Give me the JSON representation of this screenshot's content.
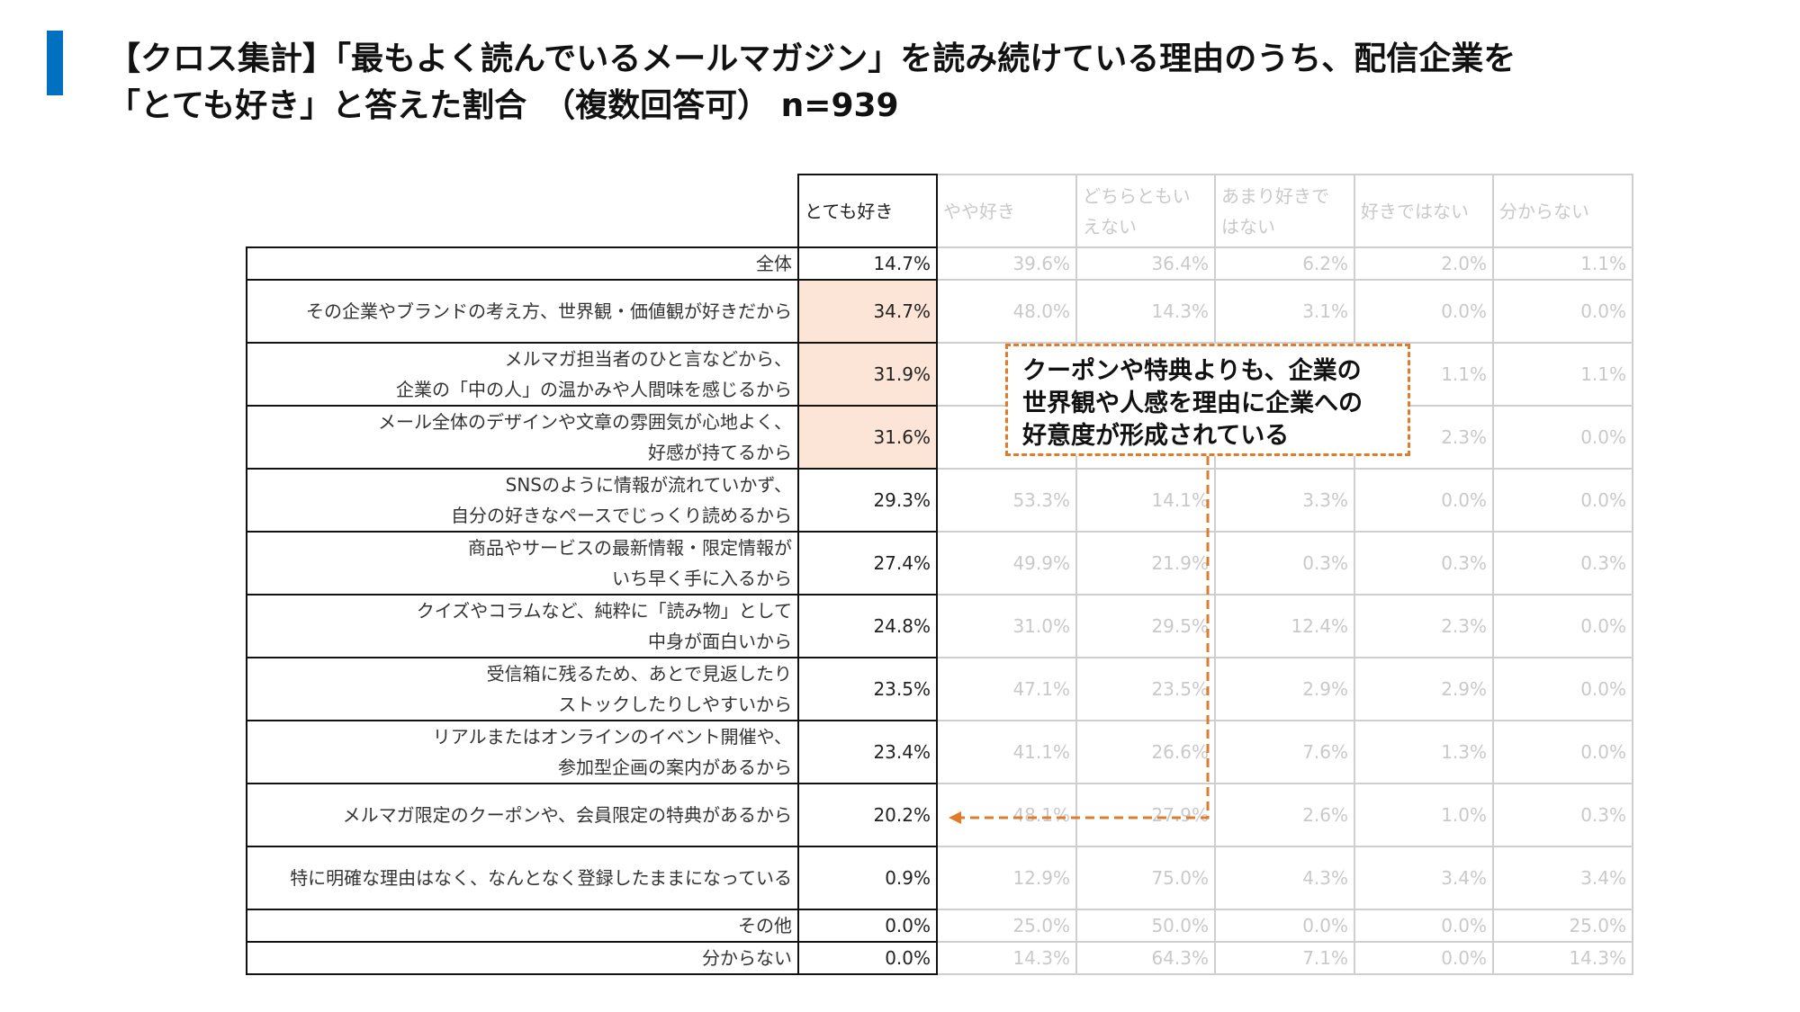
{
  "title": {
    "line1": "【クロス集計】「最もよく読んでいるメールマガジン」を読み続けている理由のうち、配信企業を",
    "line2": "「とても好き」と答えた割合　（複数回答可） n=939"
  },
  "annotation": {
    "line1": "クーポンや特典よりも、企業の",
    "line2": "世界観や人感を理由に企業への",
    "line3": "好意度が形成されている"
  },
  "colors": {
    "accent": "#0070c0",
    "highlight": "#fce4d6",
    "annotation": "#e07b2a"
  },
  "chart_data": {
    "type": "table",
    "columns": [
      [
        "とても好き"
      ],
      [
        "やや好き"
      ],
      [
        "どちらともい",
        "えない"
      ],
      [
        "あまり好きで",
        "はない"
      ],
      [
        "好きではない"
      ],
      [
        "分からない"
      ]
    ],
    "rows": [
      {
        "label": [
          "全体"
        ],
        "values": [
          "14.7%",
          "39.6%",
          "36.4%",
          "6.2%",
          "2.0%",
          "1.1%"
        ]
      },
      {
        "label": [
          "その企業やブランドの考え方、世界観・価値観が好きだから"
        ],
        "values": [
          "34.7%",
          "48.0%",
          "14.3%",
          "3.1%",
          "0.0%",
          "0.0%"
        ],
        "highlight": true
      },
      {
        "label": [
          "メルマガ担当者のひと言などから、",
          "企業の「中の人」の温かみや人間味を感じるから"
        ],
        "values": [
          "31.9%",
          "",
          "",
          "",
          "1.1%",
          "1.1%"
        ],
        "highlight": true
      },
      {
        "label": [
          "メール全体のデザインや文章の雰囲気が心地よく、",
          "好感が持てるから"
        ],
        "values": [
          "31.6%",
          "",
          "",
          "",
          "2.3%",
          "0.0%"
        ],
        "highlight": true
      },
      {
        "label": [
          "SNSのように情報が流れていかず、",
          "自分の好きなペースでじっくり読めるから"
        ],
        "values": [
          "29.3%",
          "53.3%",
          "14.1%",
          "3.3%",
          "0.0%",
          "0.0%"
        ]
      },
      {
        "label": [
          "商品やサービスの最新情報・限定情報が",
          "いち早く手に入るから"
        ],
        "values": [
          "27.4%",
          "49.9%",
          "21.9%",
          "0.3%",
          "0.3%",
          "0.3%"
        ]
      },
      {
        "label": [
          "クイズやコラムなど、純粋に「読み物」として",
          "中身が面白いから"
        ],
        "values": [
          "24.8%",
          "31.0%",
          "29.5%",
          "12.4%",
          "2.3%",
          "0.0%"
        ]
      },
      {
        "label": [
          "受信箱に残るため、あとで見返したり",
          "ストックしたりしやすいから"
        ],
        "values": [
          "23.5%",
          "47.1%",
          "23.5%",
          "2.9%",
          "2.9%",
          "0.0%"
        ]
      },
      {
        "label": [
          "リアルまたはオンラインのイベント開催や、",
          "参加型企画の案内があるから"
        ],
        "values": [
          "23.4%",
          "41.1%",
          "26.6%",
          "7.6%",
          "1.3%",
          "0.0%"
        ]
      },
      {
        "label": [
          "メルマガ限定のクーポンや、会員限定の特典があるから"
        ],
        "values": [
          "20.2%",
          "48.1%",
          "27.9%",
          "2.6%",
          "1.0%",
          "0.3%"
        ]
      },
      {
        "label": [
          "特に明確な理由はなく、なんとなく登録したままになっている"
        ],
        "values": [
          "0.9%",
          "12.9%",
          "75.0%",
          "4.3%",
          "3.4%",
          "3.4%"
        ]
      },
      {
        "label": [
          "その他"
        ],
        "values": [
          "0.0%",
          "25.0%",
          "50.0%",
          "0.0%",
          "0.0%",
          "25.0%"
        ]
      },
      {
        "label": [
          "分からない"
        ],
        "values": [
          "0.0%",
          "14.3%",
          "64.3%",
          "7.1%",
          "0.0%",
          "14.3%"
        ]
      }
    ]
  }
}
